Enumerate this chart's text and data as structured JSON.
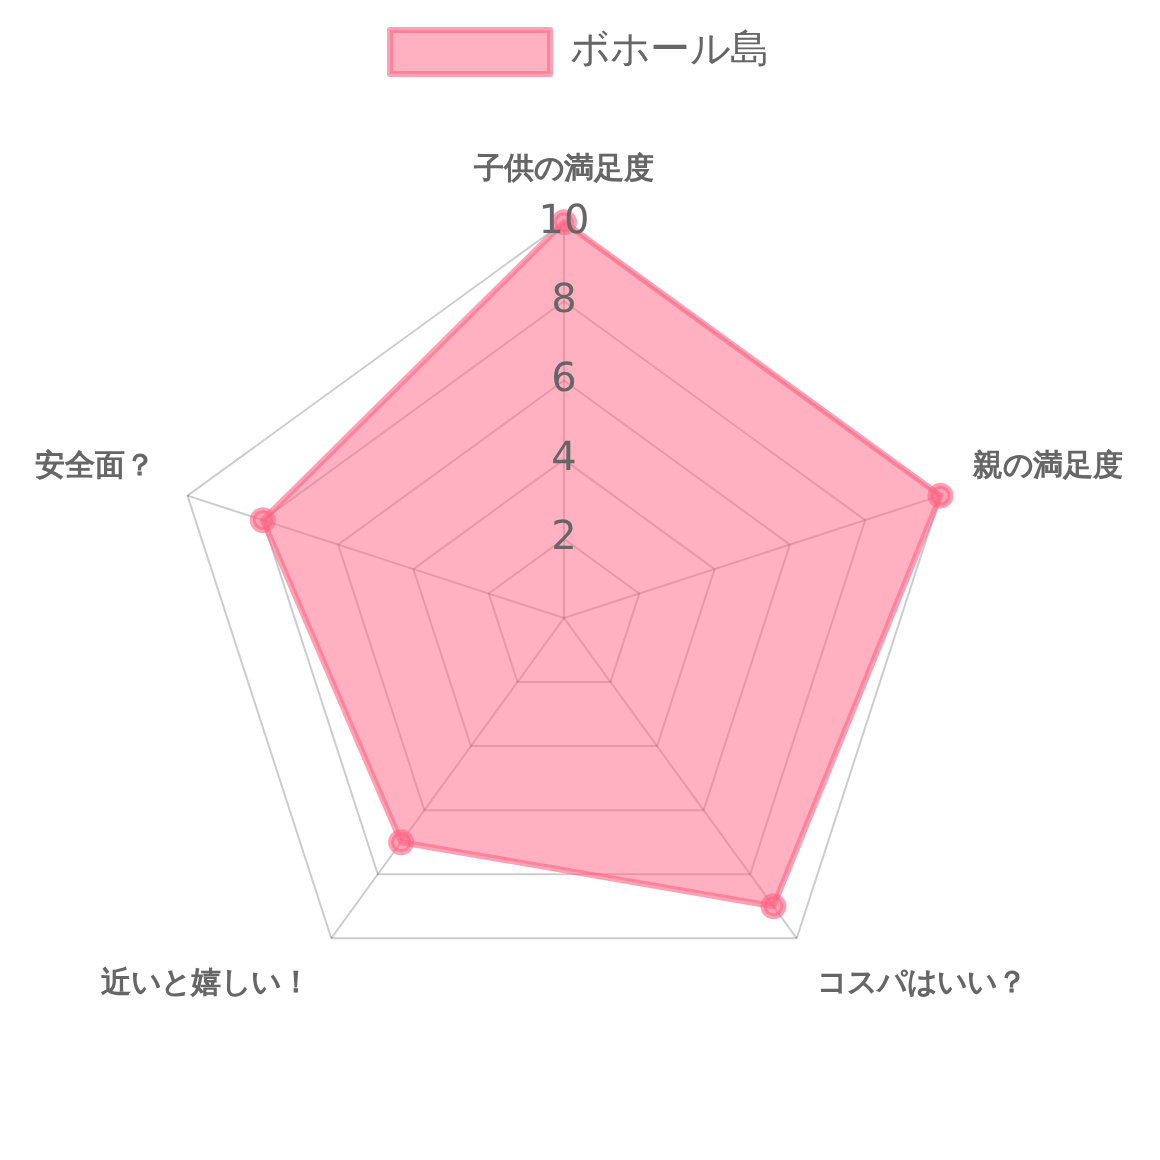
{
  "chart_data": {
    "type": "radar",
    "categories": [
      "子供の満足度",
      "親の満足度",
      "コスパはいい？",
      "近いと嬉しい！",
      "安全面？"
    ],
    "series": [
      {
        "name": "ボホール島",
        "color": "#ff6384",
        "values": [
          10,
          10,
          9,
          7,
          8
        ]
      }
    ],
    "ylim": [
      0,
      10
    ],
    "yticks": [
      2,
      4,
      6,
      8,
      10
    ],
    "grid": true,
    "legend": "top",
    "marker": "circle"
  }
}
